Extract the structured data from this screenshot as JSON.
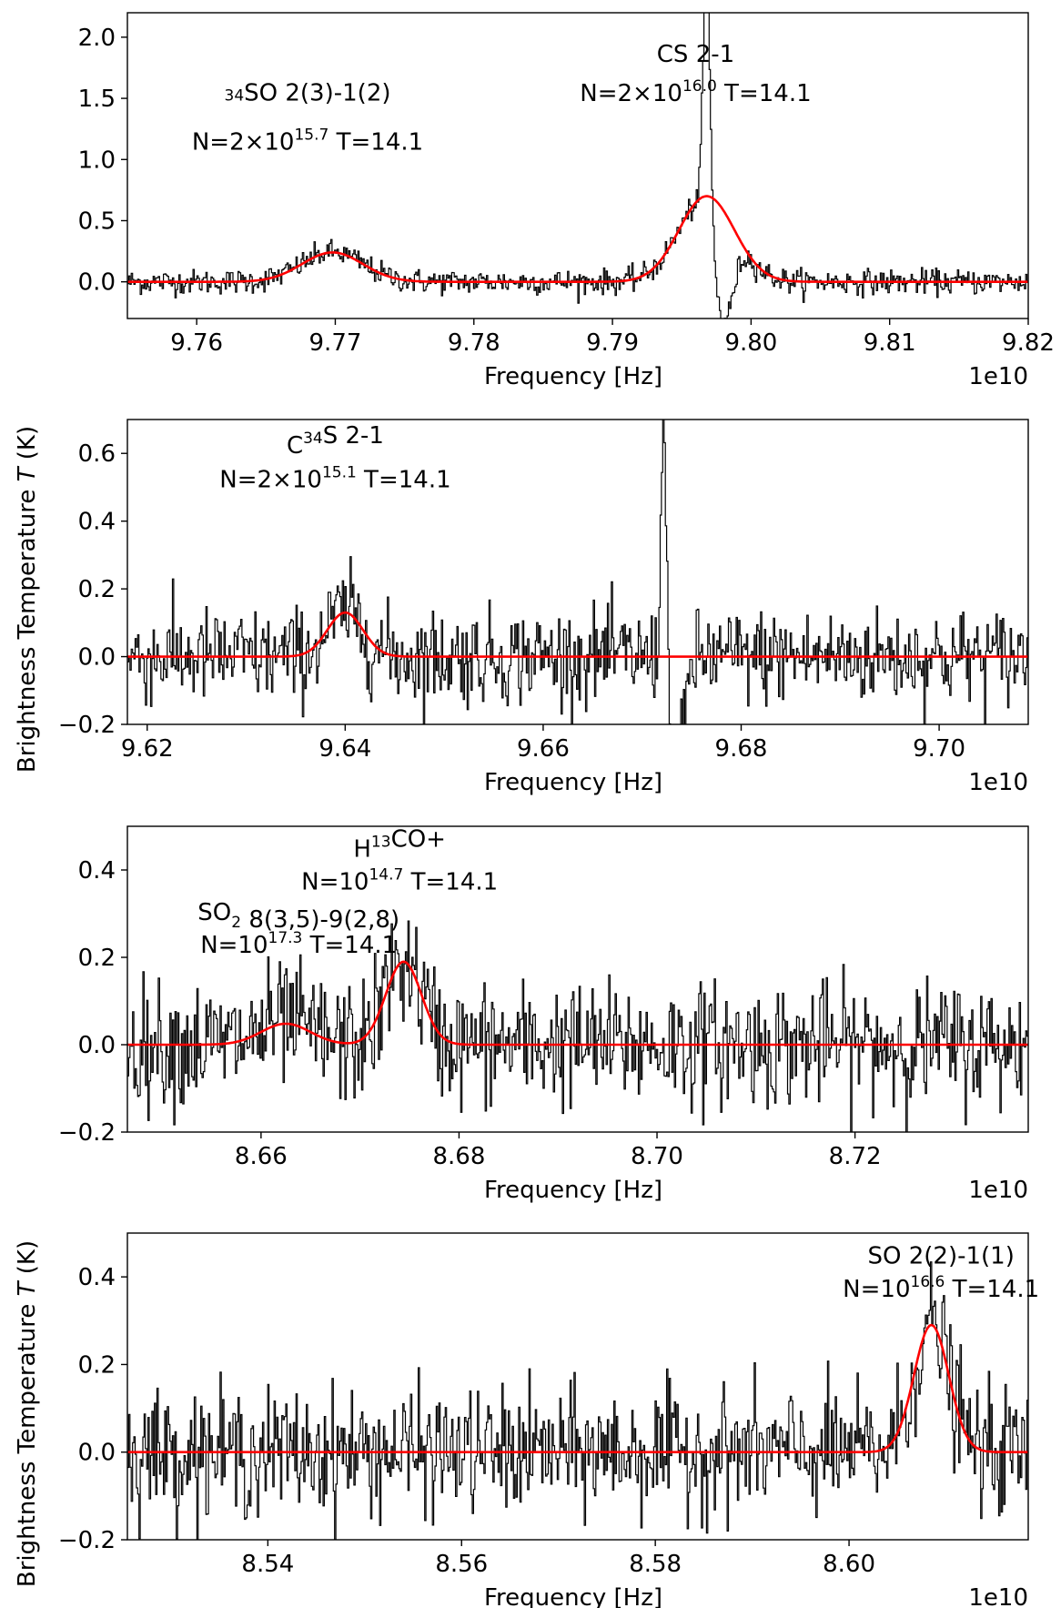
{
  "chart_data": [
    {
      "type": "line",
      "xlabel": "Frequency [Hz]",
      "offset_text": "1e10",
      "xlim": [
        9.755,
        9.82
      ],
      "ylim": [
        -0.3,
        2.2
      ],
      "xticks": [
        "9.76",
        "9.77",
        "9.78",
        "9.79",
        "9.80",
        "9.81",
        "9.82"
      ],
      "yticks": [
        "0.0",
        "0.5",
        "1.0",
        "1.5",
        "2.0"
      ],
      "noise_sigma": 0.05,
      "series": [
        {
          "kind": "model",
          "color": "#ff0000",
          "gaussians": [
            {
              "center": 9.7698,
              "amp": 0.24,
              "sigma": 0.0022
            },
            {
              "center": 9.7968,
              "amp": 0.7,
              "sigma": 0.002
            }
          ]
        },
        {
          "kind": "observed",
          "color": "#000000",
          "features": [
            {
              "center": 9.7968,
              "amp": 2.0,
              "width": 0.00025,
              "absorb_depth": -0.9,
              "absorb_width": 0.0007
            }
          ]
        }
      ],
      "annotations": [
        {
          "pre": "",
          "sup1": "34",
          "mid": "SO 2(3)-1(2)",
          "line2_pre": "N=2×10",
          "sup2": "15.7",
          "line2_post": " T=14.1",
          "x": 9.768,
          "y1": 1.4,
          "y2": 1.08
        },
        {
          "pre": "CS 2-1",
          "sup1": "",
          "mid": "",
          "line2_pre": "N=2×10",
          "sup2": "16.0",
          "line2_post": " T=14.1",
          "x": 9.796,
          "y1": 1.8,
          "y2": 1.48
        }
      ]
    },
    {
      "type": "line",
      "xlabel": "Frequency [Hz]",
      "offset_text": "1e10",
      "xlim": [
        9.618,
        9.709
      ],
      "ylim": [
        -0.2,
        0.7
      ],
      "xticks": [
        "9.62",
        "9.64",
        "9.66",
        "9.68",
        "9.70"
      ],
      "yticks": [
        "−0.2",
        "0.0",
        "0.2",
        "0.4",
        "0.6"
      ],
      "noise_sigma": 0.07,
      "series": [
        {
          "kind": "model",
          "color": "#ff0000",
          "gaussians": [
            {
              "center": 9.64,
              "amp": 0.13,
              "sigma": 0.0018
            }
          ]
        },
        {
          "kind": "observed",
          "color": "#000000",
          "features": [
            {
              "center": 9.6722,
              "amp": 0.9,
              "width": 0.00025,
              "absorb_depth": -0.4,
              "absorb_width": 0.0007
            }
          ]
        }
      ],
      "annotations": [
        {
          "pre": "C",
          "sup1": "34",
          "mid": "S 2-1",
          "line2_pre": "N=2×10",
          "sup2": "15.1",
          "line2_post": " T=14.1",
          "x": 9.639,
          "y1": 0.6,
          "y2": 0.5
        }
      ]
    },
    {
      "type": "line",
      "xlabel": "Frequency [Hz]",
      "offset_text": "1e10",
      "xlim": [
        8.6465,
        8.7375
      ],
      "ylim": [
        -0.2,
        0.5
      ],
      "xticks": [
        "8.66",
        "8.68",
        "8.70",
        "8.72"
      ],
      "yticks": [
        "−0.2",
        "0.0",
        "0.2",
        "0.4"
      ],
      "noise_sigma": 0.07,
      "series": [
        {
          "kind": "model",
          "color": "#ff0000",
          "gaussians": [
            {
              "center": 8.6625,
              "amp": 0.048,
              "sigma": 0.0025
            },
            {
              "center": 8.6744,
              "amp": 0.19,
              "sigma": 0.0018
            }
          ]
        },
        {
          "kind": "observed",
          "color": "#000000",
          "features": []
        }
      ],
      "annotations": [
        {
          "pre": "H",
          "sup1": "13",
          "mid": "CO+",
          "line2_pre": "N=10",
          "sup2": "14.7",
          "line2_post": " T=14.1",
          "x": 8.674,
          "y1": 0.43,
          "y2": 0.355
        },
        {
          "pre": "SO",
          "sub1": "2",
          "sup1": "",
          "mid": " 8(3,5)-9(2,8)",
          "line2_pre": "N=10",
          "sup2": "17.3",
          "line2_post": " T=14.1",
          "x": 8.6638,
          "y1": 0.285,
          "y2": 0.21
        }
      ]
    },
    {
      "type": "line",
      "xlabel": "Frequency [Hz]",
      "offset_text": "1e10",
      "xlim": [
        8.5255,
        8.6185
      ],
      "ylim": [
        -0.2,
        0.5
      ],
      "xticks": [
        "8.54",
        "8.56",
        "8.58",
        "8.60"
      ],
      "yticks": [
        "−0.2",
        "0.0",
        "0.2",
        "0.4"
      ],
      "noise_sigma": 0.07,
      "series": [
        {
          "kind": "model",
          "color": "#ff0000",
          "gaussians": [
            {
              "center": 8.6085,
              "amp": 0.29,
              "sigma": 0.0018
            }
          ]
        },
        {
          "kind": "observed",
          "color": "#000000",
          "features": []
        }
      ],
      "annotations": [
        {
          "pre": "SO 2(2)-1(1)",
          "sup1": "",
          "mid": "",
          "line2_pre": "N=10",
          "sup2": "16.6",
          "line2_post": " T=14.1",
          "x": 8.6095,
          "y1": 0.43,
          "y2": 0.355
        }
      ]
    }
  ],
  "ylabel_shared": "Brightness Temperature ",
  "ylabel_italic": "T",
  "ylabel_unit": " (K)"
}
